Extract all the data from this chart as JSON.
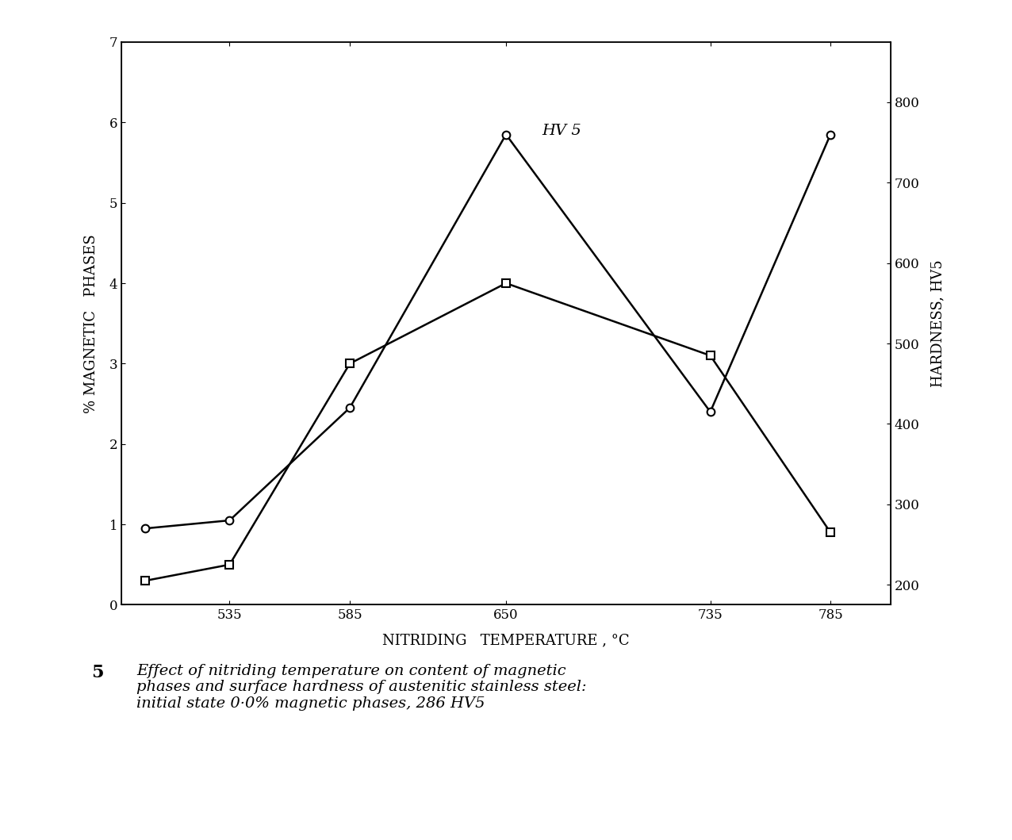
{
  "temp_magnetic": [
    500,
    535,
    585,
    650,
    735,
    785
  ],
  "magnetic_phases": [
    0.3,
    0.5,
    3.0,
    4.0,
    3.1,
    0.9
  ],
  "temp_hardness": [
    500,
    535,
    585,
    650,
    735,
    785
  ],
  "hardness_hv5": [
    270,
    280,
    420,
    760,
    415,
    760
  ],
  "left_ylabel": "% MAGNETIC   PHASES",
  "right_ylabel": "HARDNESS, HV5",
  "xlabel": "NITRIDING   TEMPERATURE , °C",
  "ylim_left": [
    0,
    7
  ],
  "ylim_right": [
    175,
    875
  ],
  "yticks_left": [
    0,
    1,
    2,
    3,
    4,
    5,
    6,
    7
  ],
  "yticks_right": [
    200,
    300,
    400,
    500,
    600,
    700,
    800
  ],
  "xticks": [
    535,
    585,
    650,
    735,
    785
  ],
  "xlim": [
    490,
    810
  ],
  "hv5_label": "HV 5",
  "caption_number": "5",
  "caption_text": "Effect of nitriding temperature on content of magnetic\nphases and surface hardness of austenitic stainless steel:\ninitial state 0·0% magnetic phases, 286 HV5",
  "line_color": "black",
  "marker_magnetic": "s",
  "marker_hardness": "o",
  "marker_size": 7,
  "line_width": 1.8,
  "background_color": "#ffffff"
}
